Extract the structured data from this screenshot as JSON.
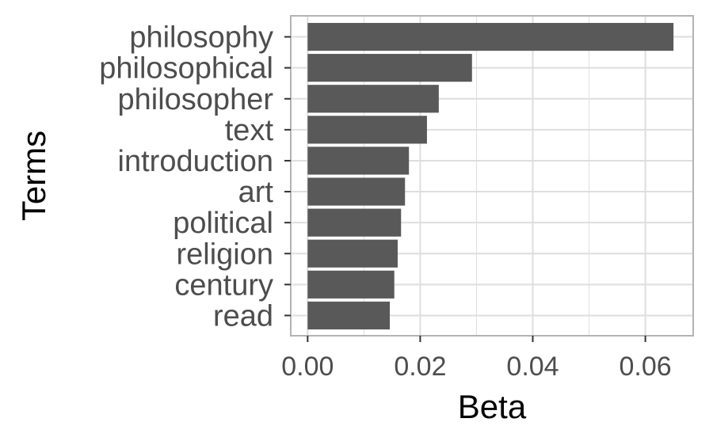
{
  "chart_data": {
    "type": "bar",
    "orientation": "horizontal",
    "title": "",
    "xlabel": "Beta",
    "ylabel": "Terms",
    "categories": [
      "philosophy",
      "philosophical",
      "philosopher",
      "text",
      "introduction",
      "art",
      "political",
      "religion",
      "century",
      "read"
    ],
    "values": [
      0.065,
      0.0292,
      0.0233,
      0.0212,
      0.018,
      0.0173,
      0.0166,
      0.016,
      0.0154,
      0.0146
    ],
    "xlim": [
      -0.003,
      0.0685
    ],
    "xticks": [
      0.0,
      0.02,
      0.04,
      0.06
    ],
    "xtick_labels": [
      "0.00",
      "0.02",
      "0.04",
      "0.06"
    ],
    "grid": true,
    "bar_color": "#595959",
    "grid_color": "#dedede",
    "border_color": "#b3b3b3"
  }
}
